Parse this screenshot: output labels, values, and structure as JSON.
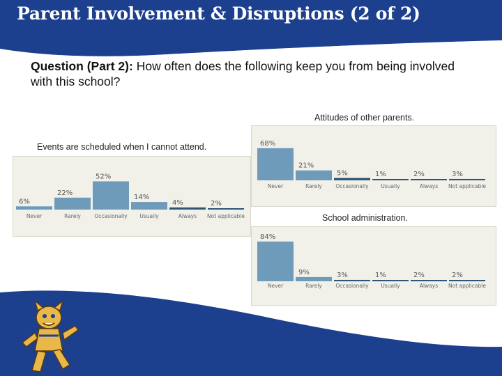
{
  "slide": {
    "title": "Parent Involvement & Disruptions (2 of 2)",
    "question_label": "Question (Part 2):",
    "question_text": "How often does the following keep you from being involved with this school?"
  },
  "colors": {
    "banner_blue": "#1c3f8e",
    "bar_blue": "#6f9bbb",
    "bar_dark": "#2f5577",
    "panel_bg": "#f1f1ea"
  },
  "chart_data": [
    {
      "type": "bar",
      "title": "Events are scheduled when I cannot attend.",
      "categories": [
        "Never",
        "Rarely",
        "Occasionally",
        "Usually",
        "Always",
        "Not applicable"
      ],
      "values": [
        6,
        22,
        52,
        14,
        4,
        2
      ],
      "value_labels": [
        "6%",
        "22%",
        "52%",
        "14%",
        "4%",
        "2%"
      ],
      "ylim": [
        0,
        100
      ]
    },
    {
      "type": "bar",
      "title": "Attitudes of other parents.",
      "categories": [
        "Never",
        "Rarely",
        "Occasionally",
        "Usually",
        "Always",
        "Not applicable"
      ],
      "values": [
        68,
        21,
        5,
        1,
        2,
        3
      ],
      "value_labels": [
        "68%",
        "21%",
        "5%",
        "1%",
        "2%",
        "3%"
      ],
      "ylim": [
        0,
        100
      ]
    },
    {
      "type": "bar",
      "title": "School administration.",
      "categories": [
        "Never",
        "Rarely",
        "Occasionally",
        "Usually",
        "Always",
        "Not applicable"
      ],
      "values": [
        84,
        9,
        3,
        1,
        2,
        2
      ],
      "value_labels": [
        "84%",
        "9%",
        "3%",
        "1%",
        "2%",
        "2%"
      ],
      "ylim": [
        0,
        100
      ]
    }
  ]
}
